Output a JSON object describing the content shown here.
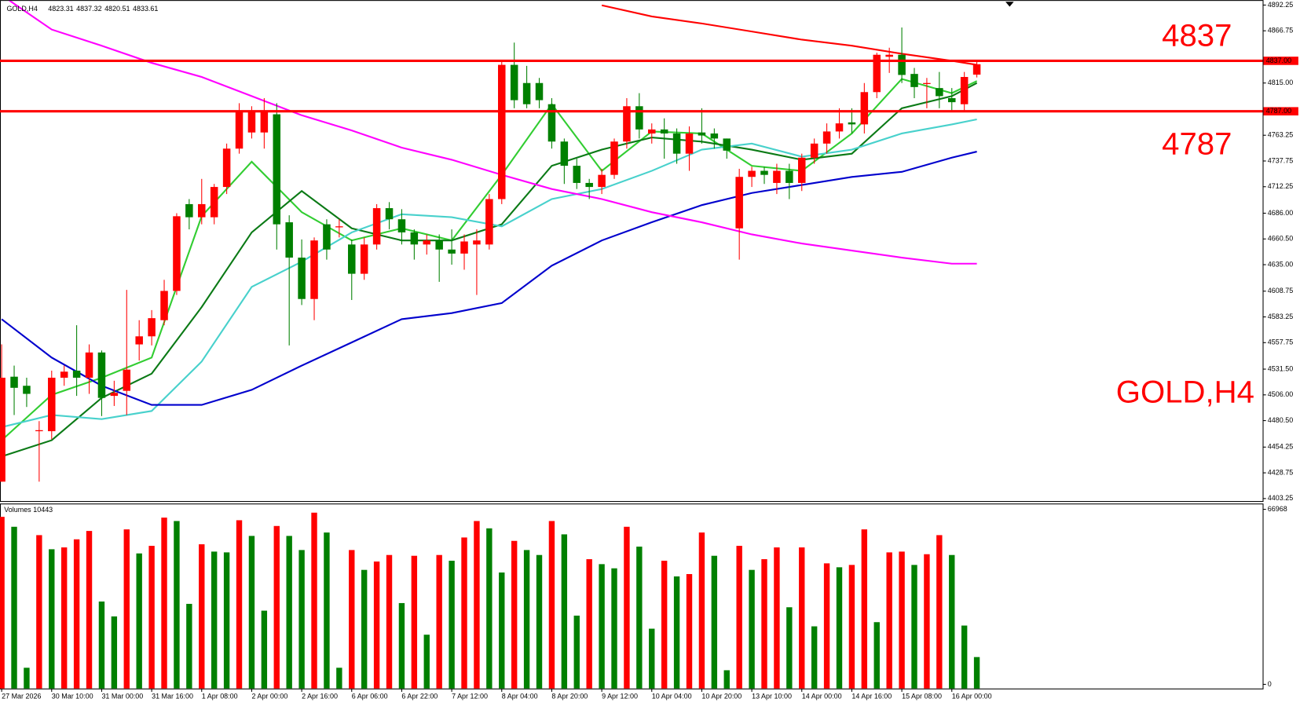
{
  "chart_data": {
    "type": "candlestick",
    "symbol": "GOLD,H4",
    "categories": [
      "27 Mar 2026",
      null,
      null,
      null,
      "30 Mar 10:00",
      null,
      null,
      null,
      "31 Mar 00:00",
      null,
      null,
      null,
      "31 Mar 16:00",
      null,
      null,
      null,
      "1 Apr 08:00",
      null,
      null,
      null,
      "2 Apr 00:00",
      null,
      null,
      null,
      "2 Apr 16:00",
      null,
      null,
      null,
      "6 Apr 06:00",
      null,
      null,
      null,
      "6 Apr 22:00",
      null,
      null,
      null,
      "7 Apr 12:00",
      null,
      null,
      null,
      "8 Apr 04:00",
      null,
      null,
      null,
      "8 Apr 20:00",
      null,
      null,
      null,
      "9 Apr 12:00",
      null,
      null,
      null,
      "10 Apr 04:00",
      null,
      null,
      null,
      "10 Apr 20:00",
      null,
      null,
      null,
      "13 Apr 10:00",
      null,
      null,
      null,
      "14 Apr 00:00",
      null,
      null,
      null,
      "14 Apr 16:00",
      null,
      null,
      null,
      "15 Apr 08:00",
      null,
      null,
      null,
      "16 Apr 00:00",
      null,
      null
    ],
    "open": [
      4420,
      4524,
      4515,
      4470,
      4470,
      4523,
      4530,
      4523,
      4548,
      4505,
      4510,
      4556,
      4564,
      4580,
      4609,
      4695,
      4682,
      4682,
      4712,
      4750,
      4766,
      4766,
      4784,
      4677,
      4642,
      4601,
      4675,
      4672,
      4655,
      4626,
      4655,
      4691,
      4680,
      4667,
      4655,
      4659,
      4650,
      4646,
      4655,
      4655,
      4700,
      4833,
      4815,
      4815,
      4794,
      4757,
      4733,
      4716,
      4712,
      4724,
      4757,
      4792,
      4765,
      4769,
      4765,
      4745,
      4766,
      4765,
      4760,
      4671,
      4722,
      4728,
      4716,
      4728,
      4716,
      4741,
      4755,
      4767,
      4776,
      4774,
      4806,
      4841,
      4843,
      4824,
      4814,
      4810,
      4800,
      4794,
      4823.31
    ],
    "high": [
      4556,
      4535,
      4523,
      4480,
      4530,
      4535,
      4575,
      4556,
      4550,
      4520,
      4610,
      4580,
      4590,
      4620,
      4686,
      4700,
      4720,
      4715,
      4755,
      4795,
      4792,
      4800,
      4795,
      4684,
      4660,
      4662,
      4680,
      4680,
      4660,
      4662,
      4695,
      4697,
      4690,
      4670,
      4665,
      4665,
      4670,
      4665,
      4670,
      4705,
      4838,
      4855,
      4832,
      4820,
      4800,
      4760,
      4740,
      4720,
      4730,
      4760,
      4800,
      4805,
      4775,
      4780,
      4770,
      4772,
      4790,
      4770,
      4760,
      4730,
      4732,
      4732,
      4735,
      4735,
      4745,
      4760,
      4775,
      4790,
      4790,
      4815,
      4845,
      4850,
      4870,
      4830,
      4820,
      4826,
      4810,
      4826,
      4837.32
    ],
    "low": [
      4420,
      4486,
      4494,
      4420,
      4462,
      4515,
      4505,
      4507,
      4485,
      4495,
      4486,
      4540,
      4555,
      4575,
      4605,
      4670,
      4675,
      4675,
      4705,
      4745,
      4760,
      4750,
      4650,
      4555,
      4595,
      4580,
      4640,
      4662,
      4600,
      4620,
      4650,
      4670,
      4655,
      4640,
      4645,
      4618,
      4635,
      4630,
      4605,
      4650,
      4695,
      4790,
      4790,
      4790,
      4750,
      4715,
      4710,
      4700,
      4705,
      4720,
      4750,
      4760,
      4755,
      4740,
      4735,
      4728,
      4755,
      4750,
      4740,
      4640,
      4712,
      4715,
      4705,
      4700,
      4708,
      4735,
      4745,
      4760,
      4765,
      4765,
      4800,
      4825,
      4815,
      4800,
      4790,
      4790,
      4788,
      4788,
      4820.51
    ],
    "close": [
      4523,
      4513,
      4507,
      4471,
      4523,
      4529,
      4523,
      4548,
      4503,
      4508,
      4531,
      4564,
      4582,
      4609,
      4683,
      4682,
      4695,
      4712,
      4750,
      4786,
      4786,
      4787,
      4675,
      4642,
      4601,
      4659,
      4650,
      4673,
      4626,
      4655,
      4691,
      4680,
      4667,
      4655,
      4659,
      4650,
      4646,
      4658,
      4659,
      4700,
      4833,
      4798,
      4794,
      4798,
      4757,
      4733,
      4716,
      4712,
      4724,
      4757,
      4792,
      4769,
      4769,
      4765,
      4745,
      4765,
      4763,
      4760,
      4748,
      4722,
      4728,
      4724,
      4728,
      4716,
      4741,
      4755,
      4767,
      4775,
      4774,
      4806,
      4843,
      4843,
      4823,
      4811,
      4815,
      4802,
      4796,
      4821,
      4833.61
    ],
    "up_color": "#ff0000",
    "down_color": "#008000",
    "ylim": [
      4403.25,
      4892.25
    ],
    "yticks": [
      {
        "value": 4892.25,
        "label": "4892.25"
      },
      {
        "value": 4866.75,
        "label": "4866.75"
      },
      {
        "value": 4815.0,
        "label": "4815.00"
      },
      {
        "value": 4763.25,
        "label": "4763.25"
      },
      {
        "value": 4737.75,
        "label": "4737.75"
      },
      {
        "value": 4712.25,
        "label": "4712.25"
      },
      {
        "value": 4686.0,
        "label": "4686.00"
      },
      {
        "value": 4660.5,
        "label": "4660.50"
      },
      {
        "value": 4635.0,
        "label": "4635.00"
      },
      {
        "value": 4608.75,
        "label": "4608.75"
      },
      {
        "value": 4583.25,
        "label": "4583.25"
      },
      {
        "value": 4557.75,
        "label": "4557.75"
      },
      {
        "value": 4531.5,
        "label": "4531.50"
      },
      {
        "value": 4506.0,
        "label": "4506.00"
      },
      {
        "value": 4480.5,
        "label": "4480.50"
      },
      {
        "value": 4454.25,
        "label": "4454.25"
      },
      {
        "value": 4428.75,
        "label": "4428.75"
      },
      {
        "value": 4403.25,
        "label": "4403.25"
      }
    ],
    "levels": [
      {
        "value": 4837,
        "label": "4837.00",
        "color": "#ff0000"
      },
      {
        "value": 4787,
        "label": "4787.00",
        "color": "#ff0000"
      }
    ],
    "moving_averages": [
      {
        "color": "#32cd32",
        "x": [
          0,
          4,
          8,
          12,
          16,
          20,
          24,
          28,
          32,
          36,
          40,
          44,
          48,
          52,
          56,
          60,
          64,
          68,
          72,
          76,
          78
        ],
        "values": [
          4461,
          4506,
          4523,
          4543,
          4683,
          4737,
          4687,
          4659,
          4671,
          4659,
          4724,
          4794,
          4728,
          4767,
          4765,
          4733,
          4728,
          4765,
          4819,
          4805,
          4817
        ]
      },
      {
        "color": "#0b7a16",
        "x": [
          0,
          4,
          8,
          12,
          16,
          20,
          24,
          28,
          32,
          36,
          40,
          44,
          48,
          52,
          56,
          60,
          64,
          68,
          72,
          76,
          78
        ],
        "values": [
          4445,
          4461,
          4503,
          4527,
          4593,
          4667,
          4708,
          4671,
          4659,
          4659,
          4675,
          4733,
          4749,
          4761,
          4757,
          4749,
          4739,
          4745,
          4790,
          4802,
          4815
        ]
      },
      {
        "color": "#48d1cc",
        "x": [
          0,
          4,
          8,
          12,
          16,
          20,
          24,
          28,
          32,
          36,
          40,
          44,
          48,
          52,
          56,
          60,
          64,
          68,
          72,
          76,
          78
        ],
        "values": [
          4474,
          4486,
          4482,
          4490,
          4539,
          4613,
          4638,
          4667,
          4685,
          4682,
          4673,
          4700,
          4710,
          4728,
          4749,
          4755,
          4742,
          4749,
          4765,
          4774,
          4779
        ]
      },
      {
        "color": "#0000cd",
        "x": [
          0,
          4,
          8,
          12,
          16,
          20,
          24,
          28,
          32,
          36,
          40,
          44,
          48,
          52,
          56,
          60,
          64,
          68,
          72,
          76,
          78
        ],
        "values": [
          4581,
          4543,
          4515,
          4496,
          4496,
          4511,
          4535,
          4558,
          4581,
          4587,
          4597,
          4634,
          4659,
          4677,
          4694,
          4706,
          4714,
          4722,
          4727,
          4741,
          4747
        ]
      },
      {
        "color": "#ff00ff",
        "x": [
          0,
          4,
          8,
          12,
          16,
          20,
          24,
          28,
          32,
          36,
          40,
          44,
          48,
          52,
          56,
          60,
          64,
          68,
          72,
          76,
          78
        ],
        "values": [
          4902,
          4868,
          4852,
          4835,
          4821,
          4802,
          4783,
          4768,
          4751,
          4739,
          4724,
          4710,
          4700,
          4687,
          4677,
          4665,
          4656,
          4649,
          4642,
          4636,
          4636
        ]
      },
      {
        "color": "#ff0000",
        "x": [
          0,
          4,
          8,
          12,
          16,
          20,
          24,
          28,
          32,
          36,
          40,
          44,
          48,
          52,
          56,
          60,
          64,
          68,
          72,
          76,
          78
        ],
        "values": [
          null,
          null,
          null,
          null,
          null,
          null,
          null,
          null,
          null,
          null,
          null,
          null,
          4892,
          4881,
          4874,
          4866,
          4858,
          4852,
          4844,
          4837,
          4833
        ]
      }
    ],
    "volumes": {
      "label": "Volumes",
      "values": [
        64100,
        60300,
        6350,
        57100,
        51700,
        52400,
        55500,
        58700,
        31700,
        26000,
        59300,
        50100,
        53000,
        63800,
        62500,
        30800,
        53600,
        50800,
        50500,
        62800,
        56800,
        28200,
        60600,
        56800,
        51400,
        65700,
        58100,
        6350,
        51400,
        43800,
        47000,
        49500,
        31100,
        49200,
        19000,
        49500,
        47300,
        56200,
        62500,
        59700,
        42800,
        54900,
        51400,
        49500,
        62500,
        57400,
        26300,
        47900,
        46000,
        44400,
        60300,
        52700,
        21300,
        47300,
        41300,
        42200,
        58100,
        49200,
        5400,
        53000,
        43800,
        47900,
        52400,
        29500,
        52400,
        22200,
        46300,
        44800,
        45700,
        59300,
        23800,
        50500,
        50800,
        45700,
        49800,
        57100,
        49500,
        22500,
        10443
      ],
      "ylim": [
        0,
        66968
      ],
      "yticks": [
        0,
        66968
      ]
    }
  }
}
